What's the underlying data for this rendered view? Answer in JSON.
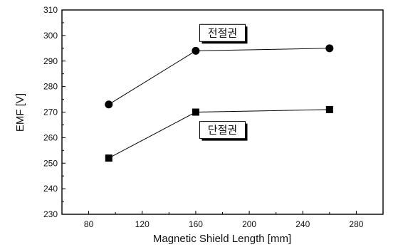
{
  "chart_data": {
    "type": "line",
    "title": "",
    "xlabel": "Magnetic Shield Length [mm]",
    "ylabel": "EMF [V]",
    "xlim": [
      60,
      300
    ],
    "ylim": [
      230,
      310
    ],
    "x_ticks": [
      80,
      120,
      160,
      200,
      240,
      280
    ],
    "y_ticks": [
      230,
      240,
      250,
      260,
      270,
      280,
      290,
      300,
      310
    ],
    "grid": false,
    "legend": "none",
    "series": [
      {
        "marker": "circle",
        "color": "#000000",
        "x": [
          95,
          160,
          260
        ],
        "y": [
          273,
          294,
          295
        ]
      },
      {
        "marker": "square",
        "color": "#000000",
        "x": [
          95,
          160,
          260
        ],
        "y": [
          252,
          270,
          271
        ]
      }
    ],
    "annotations": [
      {
        "text": "전절권",
        "x": 180,
        "y": 301
      },
      {
        "text": "단절권",
        "x": 180,
        "y": 263
      }
    ]
  }
}
